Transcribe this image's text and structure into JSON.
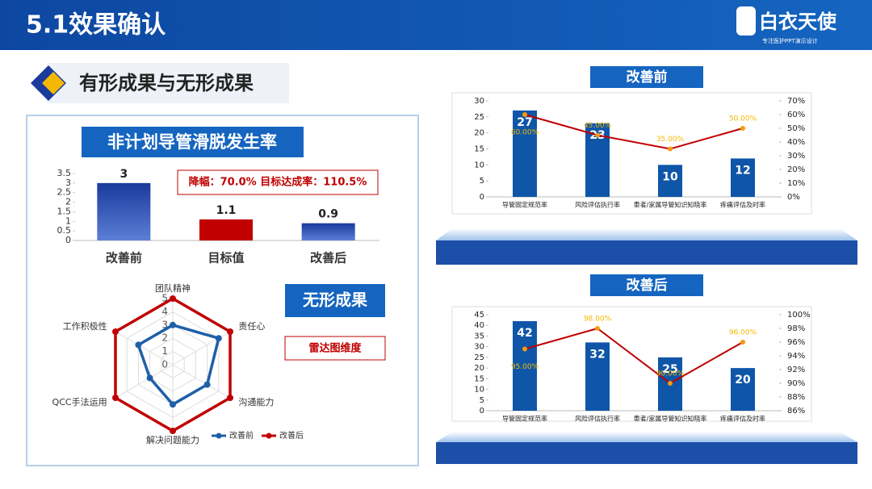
{
  "header": {
    "title": "5.1效果确认",
    "logo": "白衣天使",
    "logo_sub": "专注医护PPT演示设计"
  },
  "section": {
    "title": "有形成果与无形成果"
  },
  "chart_data": [
    {
      "type": "bar",
      "title": "非计划导管滑脱发生率",
      "categories": [
        "改善前",
        "目标值",
        "改善后"
      ],
      "values": [
        3,
        1.1,
        0.9
      ],
      "colors": [
        "#1a3a9c",
        "#c00000",
        "#1a3a9c"
      ],
      "ylim": [
        0,
        3.5
      ],
      "yticks": [
        0,
        0.5,
        1,
        1.5,
        2,
        2.5,
        3,
        3.5
      ],
      "annotation": "降幅：70.0%  目标达成率：110.5%"
    },
    {
      "type": "radar",
      "title": "无形成果",
      "subtitle": "雷达图维度",
      "categories": [
        "团队精神",
        "责任心",
        "沟通能力",
        "解决问题能力",
        "QCC手法运用",
        "工作积极性"
      ],
      "series": [
        {
          "name": "改善前",
          "color": "#1f5fa8",
          "values": [
            3,
            4,
            3,
            3,
            2,
            3
          ]
        },
        {
          "name": "改善后",
          "color": "#c00000",
          "values": [
            5,
            5,
            5,
            5,
            5,
            5
          ]
        }
      ],
      "rlim": [
        0,
        5
      ],
      "rticks": [
        0,
        1,
        2,
        3,
        4,
        5
      ]
    },
    {
      "type": "combo",
      "title": "改善前",
      "categories": [
        "导管固定规范率",
        "风险评估执行率",
        "患者/家属导管知识知晓率",
        "疼痛评估及时率"
      ],
      "series": [
        {
          "type": "bar",
          "color": "#0f56a8",
          "values": [
            27,
            23,
            10,
            12
          ]
        },
        {
          "type": "line",
          "axis": "y2",
          "color": "#c00000",
          "marker_color": "#f39c12",
          "label_color": "#f5b800",
          "values": [
            60,
            45,
            35,
            50
          ],
          "value_labels": [
            "60.00%",
            "45.00%",
            "35.00%",
            "50.00%"
          ]
        }
      ],
      "ylim": [
        0,
        30
      ],
      "yticks": [
        0,
        5,
        10,
        15,
        20,
        25,
        30
      ],
      "y2lim": [
        0,
        70
      ],
      "y2ticks": [
        {
          "value": 0,
          "label": "0%"
        },
        {
          "value": 10,
          "label": "10%"
        },
        {
          "value": 20,
          "label": "20%"
        },
        {
          "value": 30,
          "label": "30%"
        },
        {
          "value": 40,
          "label": "40%"
        },
        {
          "value": 50,
          "label": "50%"
        },
        {
          "value": 60,
          "label": "60%"
        },
        {
          "value": 70,
          "label": "70%"
        }
      ]
    },
    {
      "type": "combo",
      "title": "改善后",
      "categories": [
        "导管固定规范率",
        "风险评估执行率",
        "患者/家属导管知识知晓率",
        "疼痛评估及时率"
      ],
      "series": [
        {
          "type": "bar",
          "color": "#0f56a8",
          "values": [
            42,
            32,
            25,
            20
          ]
        },
        {
          "type": "line",
          "axis": "y2",
          "color": "#c00000",
          "marker_color": "#f39c12",
          "label_color": "#f5b800",
          "values": [
            95,
            98,
            90,
            96
          ],
          "value_labels": [
            "95.00%",
            "98.00%",
            "90.00%",
            "96.00%"
          ]
        }
      ],
      "ylim": [
        0,
        45
      ],
      "yticks": [
        0,
        5,
        10,
        15,
        20,
        25,
        30,
        35,
        40,
        45
      ],
      "y2lim": [
        86,
        100
      ],
      "y2ticks": [
        {
          "value": 86,
          "label": "86%"
        },
        {
          "value": 88,
          "label": "88%"
        },
        {
          "value": 90,
          "label": "90%"
        },
        {
          "value": 92,
          "label": "92%"
        },
        {
          "value": 94,
          "label": "94%"
        },
        {
          "value": 96,
          "label": "96%"
        },
        {
          "value": 98,
          "label": "98%"
        },
        {
          "value": 100,
          "label": "100%"
        }
      ]
    }
  ]
}
